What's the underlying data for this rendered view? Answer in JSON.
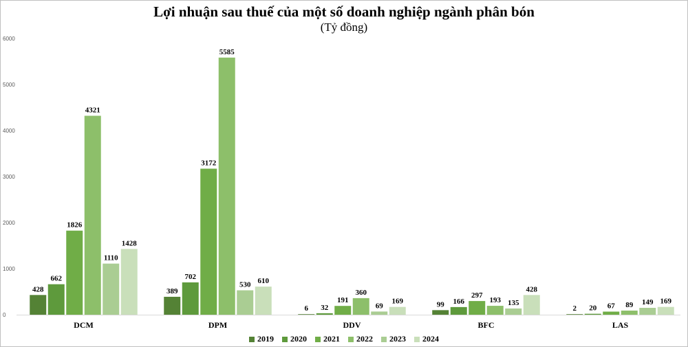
{
  "chart_data": {
    "type": "bar",
    "title": "Lợi nhuận sau thuế của một số doanh nghiệp ngành phân bón",
    "subtitle": "(Tỷ đồng)",
    "categories": [
      "DCM",
      "DPM",
      "DDV",
      "BFC",
      "LAS"
    ],
    "series": [
      {
        "name": "2019",
        "color": "#548235",
        "values": [
          428,
          389,
          6,
          99,
          2
        ]
      },
      {
        "name": "2020",
        "color": "#5e9a3c",
        "values": [
          662,
          702,
          32,
          166,
          20
        ]
      },
      {
        "name": "2021",
        "color": "#70ad47",
        "values": [
          1826,
          3172,
          191,
          297,
          67
        ]
      },
      {
        "name": "2022",
        "color": "#8dbf6a",
        "values": [
          4321,
          5585,
          360,
          193,
          89
        ]
      },
      {
        "name": "2023",
        "color": "#aacd93",
        "values": [
          1110,
          530,
          69,
          135,
          149
        ]
      },
      {
        "name": "2024",
        "color": "#c9dfba",
        "values": [
          1428,
          610,
          169,
          428,
          169
        ]
      }
    ],
    "yticks": [
      0,
      1000,
      2000,
      3000,
      4000,
      5000,
      6000
    ],
    "ylim": [
      0,
      6000
    ],
    "grid": false,
    "legend": "bottom",
    "data_labels": true
  }
}
